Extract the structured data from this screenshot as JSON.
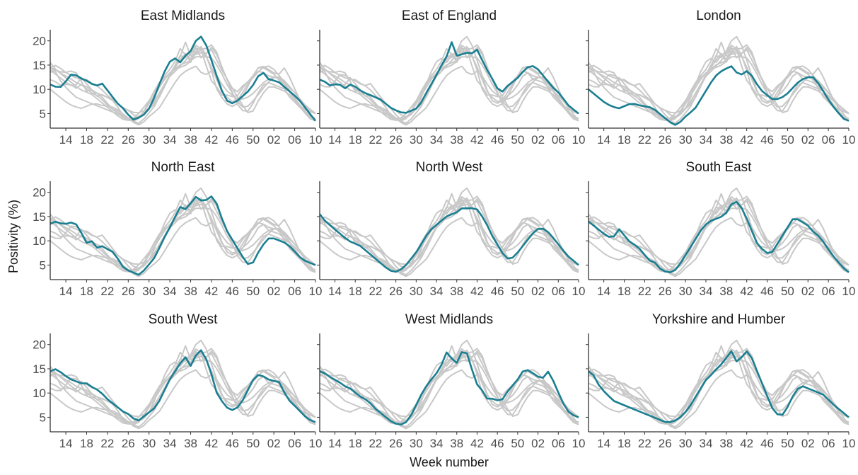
{
  "chart_data": {
    "type": "line",
    "xlabel": "Week number",
    "ylabel": "Positivity (%)",
    "grid": false,
    "legend": "none",
    "x_tick_labels": [
      "14",
      "18",
      "22",
      "26",
      "30",
      "34",
      "38",
      "42",
      "46",
      "50",
      "02",
      "06",
      "10"
    ],
    "y_ticks": [
      5,
      10,
      15,
      20
    ],
    "ylim": [
      2,
      22
    ],
    "week_sequence_note_shown": false,
    "colors": {
      "highlight": "#1a7f91",
      "background_series": "#c8c8c8",
      "axis": "#333333"
    },
    "week_labels": [
      "11",
      "12",
      "13",
      "14",
      "15",
      "16",
      "17",
      "18",
      "19",
      "20",
      "21",
      "22",
      "23",
      "24",
      "25",
      "26",
      "27",
      "28",
      "29",
      "30",
      "31",
      "32",
      "33",
      "34",
      "35",
      "36",
      "37",
      "38",
      "39",
      "40",
      "41",
      "42",
      "43",
      "44",
      "45",
      "46",
      "47",
      "48",
      "49",
      "50",
      "51",
      "52",
      "01",
      "02",
      "03",
      "04",
      "05",
      "06",
      "07",
      "08",
      "09",
      "10"
    ],
    "panels": [
      {
        "title": "East Midlands",
        "values": [
          11,
          10.5,
          10.5,
          12,
          13.5,
          12.5,
          12,
          11.5,
          10.5,
          11.5,
          10,
          8.5,
          7,
          6,
          4.5,
          3.5,
          4.5,
          5,
          7,
          10,
          13,
          15.5,
          16.5,
          15.5,
          17,
          18,
          20.5,
          21,
          18,
          14.5,
          11,
          8,
          7,
          7.5,
          8.5,
          9.5,
          11,
          13,
          13.5,
          11.5,
          12,
          11,
          10,
          9,
          8,
          6.5,
          5,
          3.5
        ]
      },
      {
        "title": "East of England",
        "values": [
          12,
          11.5,
          10.5,
          11.5,
          10,
          11,
          10.5,
          9.5,
          9,
          8.5,
          8,
          7,
          6,
          5.5,
          5,
          5.5,
          6,
          7.5,
          10,
          12,
          14.5,
          16.5,
          20,
          16,
          18,
          17,
          18.5,
          16,
          13.5,
          11.5,
          9,
          10.5,
          11.5,
          12.5,
          14,
          15,
          14.5,
          13,
          11.5,
          10,
          9,
          7,
          6,
          5
        ]
      },
      {
        "title": "London",
        "values": [
          10,
          9,
          8,
          7,
          6.5,
          6,
          6.5,
          7,
          7,
          6.5,
          6.5,
          6,
          5,
          4,
          3,
          2.5,
          4,
          5,
          6,
          8,
          10,
          12,
          13.5,
          14,
          15,
          13.5,
          13,
          14,
          12,
          10,
          9,
          8,
          8,
          8.5,
          9.5,
          11,
          12,
          12.5,
          12.5,
          11,
          9,
          7,
          5.5,
          4,
          3.5
        ]
      },
      {
        "title": "North East",
        "values": [
          13.5,
          14,
          13.5,
          13.5,
          14,
          12.5,
          9.5,
          10,
          8.5,
          9,
          8,
          7.5,
          5,
          4,
          3.5,
          3,
          4,
          5.5,
          7,
          10,
          12,
          14.5,
          17,
          16.5,
          18,
          19.5,
          17.5,
          19.5,
          18.5,
          15,
          12,
          10,
          8,
          6,
          4.5,
          7,
          9,
          10.5,
          10.5,
          10,
          9.5,
          8.5,
          7,
          6,
          5.5,
          5
        ]
      },
      {
        "title": "North West",
        "values": [
          15.5,
          14,
          13,
          12,
          11,
          10,
          9.5,
          9,
          8,
          7,
          6,
          5,
          4,
          3.5,
          4,
          5,
          6.5,
          8,
          10,
          12,
          13,
          14,
          15,
          15.5,
          16,
          17,
          16.5,
          17,
          15.5,
          13.5,
          11,
          9,
          7,
          6,
          7,
          8.5,
          10,
          11.5,
          12.5,
          12.5,
          11.5,
          10,
          8.5,
          7,
          6,
          5
        ]
      },
      {
        "title": "South East",
        "values": [
          14,
          13,
          12,
          11,
          10.5,
          12.5,
          11,
          9.5,
          9,
          7.5,
          6,
          5.5,
          4,
          3.5,
          3.5,
          5,
          7,
          9,
          11,
          13,
          14,
          14.5,
          15,
          16,
          18.5,
          17.5,
          15,
          12,
          9,
          8,
          7,
          9,
          11,
          13,
          15,
          14,
          13.5,
          12,
          11,
          9.5,
          7.5,
          6,
          4.5,
          3.5
        ]
      },
      {
        "title": "South West",
        "values": [
          14.5,
          15,
          14,
          13,
          12.5,
          12,
          12,
          11,
          10.5,
          9,
          8,
          7,
          6,
          5.5,
          4,
          5,
          6,
          7,
          9,
          12,
          14,
          16,
          17.5,
          15,
          19.5,
          18,
          14.5,
          10,
          8,
          6.5,
          6.5,
          8,
          10.5,
          13,
          14,
          13,
          12.5,
          12.5,
          10,
          8,
          7,
          5.5,
          4.5,
          4
        ]
      },
      {
        "title": "West Midlands",
        "values": [
          14.5,
          14,
          13,
          12.5,
          11.5,
          11,
          10,
          9,
          8.5,
          7,
          6,
          5,
          4,
          3.5,
          3.5,
          5,
          7.5,
          10,
          12,
          13.5,
          15,
          18.5,
          17,
          16,
          20,
          16,
          12,
          10.5,
          8.5,
          9,
          8,
          10,
          11.5,
          13,
          15,
          14.5,
          13.5,
          13,
          14.5,
          12,
          9,
          6.5,
          5.5,
          5
        ]
      },
      {
        "title": "Yorkshire and Humber",
        "values": [
          14.5,
          13.5,
          11,
          10,
          8.5,
          8,
          7.5,
          7,
          6.5,
          6,
          5.5,
          5,
          4.5,
          4,
          4,
          4.5,
          5.5,
          7,
          9,
          11,
          13,
          14,
          15.5,
          16.5,
          19,
          16.5,
          17.5,
          19,
          16,
          13,
          10,
          7,
          5.5,
          5.5,
          8,
          10.5,
          11.5,
          11,
          10.5,
          10,
          9.5,
          8,
          7,
          6,
          5
        ]
      }
    ]
  }
}
